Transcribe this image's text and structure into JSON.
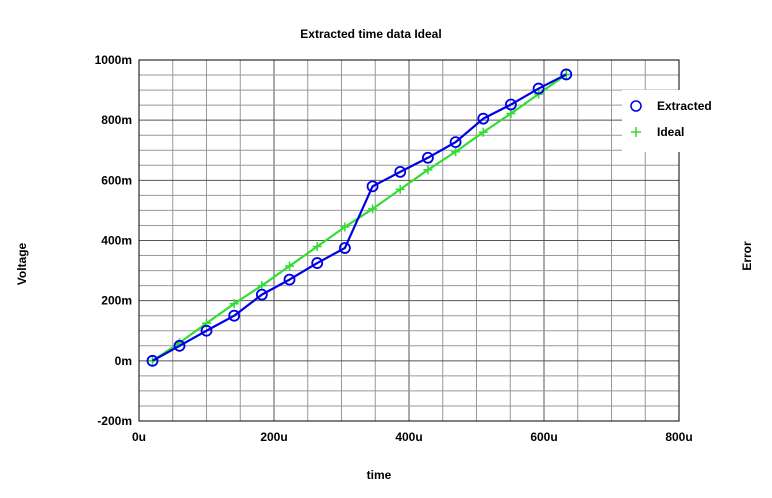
{
  "chart_data": {
    "type": "line",
    "title": "Extracted time data Ideal",
    "xlabel": "time",
    "ylabel": "Voltage",
    "y2label": "Error",
    "xlim": [
      0,
      800
    ],
    "ylim": [
      -200,
      1000
    ],
    "x_unit": "u",
    "y_unit": "m",
    "x_ticks": [
      "0u",
      "200u",
      "400u",
      "600u",
      "800u"
    ],
    "y_ticks": [
      "-200m",
      "0m",
      "200m",
      "400m",
      "600m",
      "800m",
      "1000m"
    ],
    "grid": true,
    "legend_position": "top-right",
    "series": [
      {
        "name": "Extracted",
        "color": "#0000e6",
        "marker": "circle",
        "x": [
          20,
          60,
          100,
          141,
          182,
          223,
          264,
          305,
          346,
          387,
          428,
          469,
          510,
          551,
          592,
          633
        ],
        "y": [
          0,
          50,
          100,
          150,
          220,
          270,
          325,
          375,
          580,
          628,
          675,
          727,
          805,
          852,
          905,
          952
        ]
      },
      {
        "name": "Ideal",
        "color": "#33dd33",
        "marker": "plus",
        "x": [
          20,
          60,
          100,
          141,
          182,
          223,
          264,
          305,
          346,
          387,
          428,
          469,
          510,
          551,
          592,
          633
        ],
        "y": [
          0,
          60,
          125,
          190,
          250,
          315,
          380,
          445,
          505,
          570,
          635,
          695,
          760,
          822,
          887,
          952
        ]
      }
    ]
  }
}
